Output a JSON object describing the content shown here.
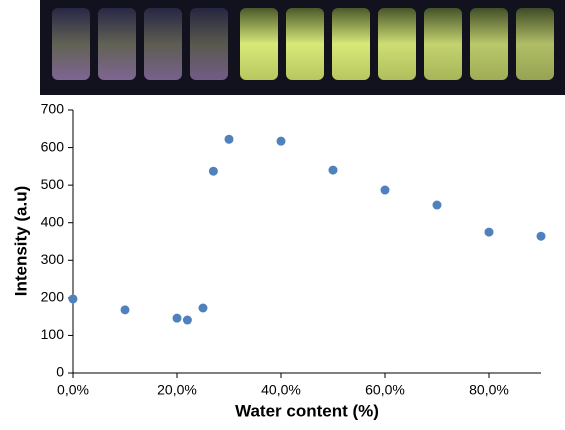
{
  "chart_data": {
    "type": "scatter",
    "xlabel": "Water content (%)",
    "ylabel": "Intensity (a.u)",
    "x": [
      0,
      10,
      20,
      22,
      25,
      27,
      30,
      40,
      50,
      60,
      70,
      80,
      90
    ],
    "series": [
      {
        "color": "#4f81bd",
        "values": [
          197,
          168,
          146,
          141,
          173,
          537,
          622,
          617,
          540,
          487,
          447,
          375,
          364
        ]
      }
    ],
    "xlim": [
      0,
      90
    ],
    "xticks": [
      {
        "value": 0,
        "label": "0,0%"
      },
      {
        "value": 20,
        "label": "20,0%"
      },
      {
        "value": 40,
        "label": "40,0%"
      },
      {
        "value": 60,
        "label": "60,0%"
      },
      {
        "value": 80,
        "label": "80,0%"
      }
    ],
    "ylim": [
      0,
      700
    ],
    "yticks": [
      0,
      100,
      200,
      300,
      400,
      500,
      600,
      700
    ],
    "grid": false
  }
}
